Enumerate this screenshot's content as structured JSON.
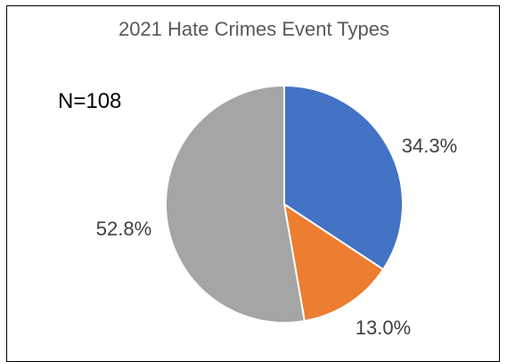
{
  "chart_data": {
    "type": "pie",
    "title": "2021 Hate Crimes Event Types",
    "annotation": "N=108",
    "slices": [
      {
        "value": 34.3,
        "label": "34.3%",
        "color": "#4472C4"
      },
      {
        "value": 13.0,
        "label": "13.0%",
        "color": "#ED7D31"
      },
      {
        "value": 52.8,
        "label": "52.8%",
        "color": "#A5A5A5"
      }
    ],
    "legend": "none",
    "start_angle_deg": 0,
    "direction": "clockwise"
  }
}
